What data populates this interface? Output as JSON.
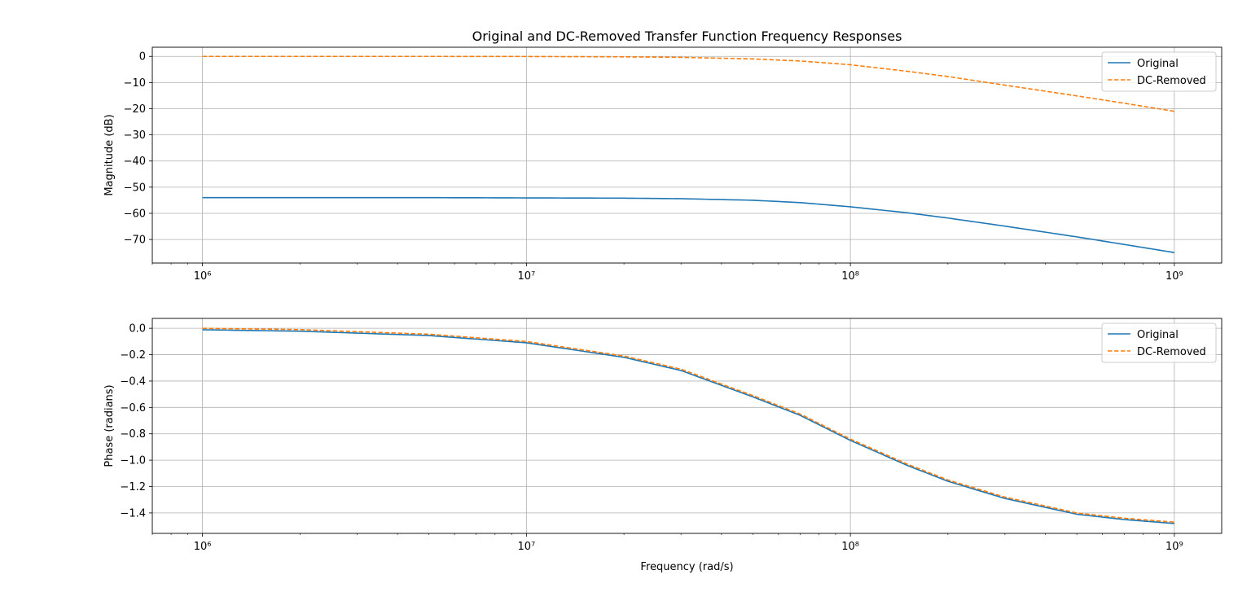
{
  "chart_data": [
    {
      "type": "line",
      "title": "Original and DC-Removed Transfer Function Frequency Responses",
      "xlabel": "",
      "ylabel": "Magnitude (dB)",
      "xscale": "log",
      "xlim": [
        700000,
        1400000000
      ],
      "ylim": [
        -79,
        3.5
      ],
      "x_ticks": [
        1000000,
        10000000,
        100000000,
        1000000000
      ],
      "x_tick_labels": [
        "10⁶",
        "10⁷",
        "10⁸",
        "10⁹"
      ],
      "y_ticks": [
        0,
        -10,
        -20,
        -30,
        -40,
        -50,
        -60,
        -70
      ],
      "y_tick_labels": [
        "0",
        "−10",
        "−20",
        "−30",
        "−40",
        "−50",
        "−60",
        "−70"
      ],
      "grid": true,
      "legend_position": "upper right",
      "x": [
        1000000,
        2000000,
        5000000,
        10000000,
        20000000,
        30000000,
        50000000,
        70000000,
        100000000,
        150000000,
        200000000,
        300000000,
        500000000,
        700000000,
        1000000000
      ],
      "series": [
        {
          "name": "Original",
          "color": "#1f77b4",
          "style": "solid",
          "values": [
            -54.0,
            -54.0,
            -54.0,
            -54.1,
            -54.2,
            -54.4,
            -55.0,
            -55.9,
            -57.5,
            -59.8,
            -61.8,
            -64.9,
            -69.0,
            -71.9,
            -75.0
          ]
        },
        {
          "name": "DC-Removed",
          "color": "#ff7f0e",
          "style": "dashed",
          "values": [
            0.0,
            0.0,
            0.0,
            -0.04,
            -0.17,
            -0.37,
            -0.97,
            -1.75,
            -3.2,
            -5.7,
            -7.7,
            -11.0,
            -15.1,
            -17.9,
            -21.0
          ]
        }
      ]
    },
    {
      "type": "line",
      "title": "",
      "xlabel": "Frequency (rad/s)",
      "ylabel": "Phase (radians)",
      "xscale": "log",
      "xlim": [
        700000,
        1400000000
      ],
      "ylim": [
        -1.555,
        0.075
      ],
      "x_ticks": [
        1000000,
        10000000,
        100000000,
        1000000000
      ],
      "x_tick_labels": [
        "10⁶",
        "10⁷",
        "10⁸",
        "10⁹"
      ],
      "y_ticks": [
        0.0,
        -0.2,
        -0.4,
        -0.6,
        -0.8,
        -1.0,
        -1.2,
        -1.4
      ],
      "y_tick_labels": [
        "0.0",
        "−0.2",
        "−0.4",
        "−0.6",
        "−0.8",
        "−1.0",
        "−1.2",
        "−1.4"
      ],
      "grid": true,
      "legend_position": "upper right",
      "x": [
        1000000,
        2000000,
        5000000,
        10000000,
        20000000,
        30000000,
        50000000,
        70000000,
        100000000,
        150000000,
        200000000,
        300000000,
        500000000,
        700000000,
        1000000000
      ],
      "series": [
        {
          "name": "Original",
          "color": "#1f77b4",
          "style": "solid",
          "values": [
            -0.011,
            -0.022,
            -0.055,
            -0.11,
            -0.22,
            -0.32,
            -0.52,
            -0.66,
            -0.85,
            -1.04,
            -1.16,
            -1.29,
            -1.41,
            -1.45,
            -1.48
          ]
        },
        {
          "name": "DC-Removed",
          "color": "#ff7f0e",
          "style": "dashed",
          "values": [
            0.0,
            -0.01,
            -0.045,
            -0.1,
            -0.21,
            -0.31,
            -0.51,
            -0.65,
            -0.84,
            -1.03,
            -1.15,
            -1.28,
            -1.4,
            -1.44,
            -1.47
          ]
        }
      ]
    }
  ]
}
